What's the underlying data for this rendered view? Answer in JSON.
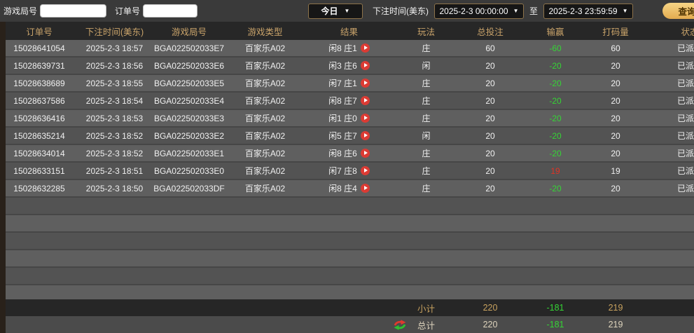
{
  "topbar": {
    "game_round_label": "游戏局号",
    "order_no_label": "订单号",
    "game_round_value": "",
    "order_no_value": "",
    "quick_range_value": "今日",
    "bet_time_label": "下注时间(美东)",
    "date_from": "2025-2-3 00:00:00",
    "to_label": "至",
    "date_to": "2025-2-3 23:59:59",
    "search_label": "查询",
    "dropdown_arrow": "▼"
  },
  "table": {
    "headers": [
      "订单号",
      "下注时间(美东)",
      "游戏局号",
      "游戏类型",
      "结果",
      "玩法",
      "总投注",
      "输赢",
      "打码量",
      "状态"
    ],
    "rows": [
      {
        "order_no": "15028641054",
        "bet_time": "2025-2-3 18:57",
        "round_no": "BGA022502033E7",
        "game_type": "百家乐A02",
        "result": "闲8 庄1",
        "play": "庄",
        "total_bet": "60",
        "win_loss": "-60",
        "win_loss_color": "loss",
        "turnover": "60",
        "status": "已派彩"
      },
      {
        "order_no": "15028639731",
        "bet_time": "2025-2-3 18:56",
        "round_no": "BGA022502033E6",
        "game_type": "百家乐A02",
        "result": "闲3 庄6",
        "play": "闲",
        "total_bet": "20",
        "win_loss": "-20",
        "win_loss_color": "loss",
        "turnover": "20",
        "status": "已派彩"
      },
      {
        "order_no": "15028638689",
        "bet_time": "2025-2-3 18:55",
        "round_no": "BGA022502033E5",
        "game_type": "百家乐A02",
        "result": "闲7 庄1",
        "play": "庄",
        "total_bet": "20",
        "win_loss": "-20",
        "win_loss_color": "loss",
        "turnover": "20",
        "status": "已派彩"
      },
      {
        "order_no": "15028637586",
        "bet_time": "2025-2-3 18:54",
        "round_no": "BGA022502033E4",
        "game_type": "百家乐A02",
        "result": "闲8 庄7",
        "play": "庄",
        "total_bet": "20",
        "win_loss": "-20",
        "win_loss_color": "loss",
        "turnover": "20",
        "status": "已派彩"
      },
      {
        "order_no": "15028636416",
        "bet_time": "2025-2-3 18:53",
        "round_no": "BGA022502033E3",
        "game_type": "百家乐A02",
        "result": "闲1 庄0",
        "play": "庄",
        "total_bet": "20",
        "win_loss": "-20",
        "win_loss_color": "loss",
        "turnover": "20",
        "status": "已派彩"
      },
      {
        "order_no": "15028635214",
        "bet_time": "2025-2-3 18:52",
        "round_no": "BGA022502033E2",
        "game_type": "百家乐A02",
        "result": "闲5 庄7",
        "play": "闲",
        "total_bet": "20",
        "win_loss": "-20",
        "win_loss_color": "loss",
        "turnover": "20",
        "status": "已派彩"
      },
      {
        "order_no": "15028634014",
        "bet_time": "2025-2-3 18:52",
        "round_no": "BGA022502033E1",
        "game_type": "百家乐A02",
        "result": "闲8 庄6",
        "play": "庄",
        "total_bet": "20",
        "win_loss": "-20",
        "win_loss_color": "loss",
        "turnover": "20",
        "status": "已派彩"
      },
      {
        "order_no": "15028633151",
        "bet_time": "2025-2-3 18:51",
        "round_no": "BGA022502033E0",
        "game_type": "百家乐A02",
        "result": "闲7 庄8",
        "play": "庄",
        "total_bet": "20",
        "win_loss": "19",
        "win_loss_color": "win",
        "turnover": "19",
        "status": "已派彩"
      },
      {
        "order_no": "15028632285",
        "bet_time": "2025-2-3 18:50",
        "round_no": "BGA022502033DF",
        "game_type": "百家乐A02",
        "result": "闲8 庄4",
        "play": "庄",
        "total_bet": "20",
        "win_loss": "-20",
        "win_loss_color": "loss",
        "turnover": "20",
        "status": "已派彩"
      }
    ],
    "empty_row_count": 6,
    "subtotal": {
      "label": "小计",
      "total_bet": "220",
      "win_loss": "-181",
      "turnover": "219"
    },
    "total": {
      "label": "总计",
      "total_bet": "220",
      "win_loss": "-181",
      "turnover": "219"
    }
  },
  "icons": {
    "play": "play-icon (red circle, white right triangle)",
    "refresh": "refresh-icon (red/green circular arrows)",
    "dropdown": "chevron-down"
  },
  "colors": {
    "header_gold": "#c9a36a",
    "win_red": "#e03325",
    "loss_green": "#35d435",
    "button_gold": "#eec568",
    "subtotal_bg": "#262626"
  }
}
